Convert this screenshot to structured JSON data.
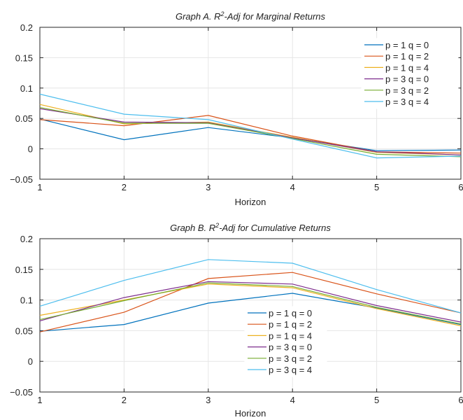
{
  "chart_data": [
    {
      "type": "line",
      "title_main": "Graph A. R",
      "title_sup": "2",
      "title_rest": "-Adj for Marginal Returns",
      "xlabel": "Horizon",
      "ylabel": "",
      "x": [
        1,
        2,
        3,
        4,
        5,
        6
      ],
      "xlim": [
        1,
        6
      ],
      "ylim": [
        -0.05,
        0.2
      ],
      "xticks": [
        1,
        2,
        3,
        4,
        5,
        6
      ],
      "yticks": [
        -0.05,
        0,
        0.05,
        0.1,
        0.15,
        0.2
      ],
      "ytick_labels": [
        "−0.05",
        "0",
        "0.05",
        "0.1",
        "0.15",
        "0.2"
      ],
      "grid": true,
      "legend_position": "top-right",
      "series": [
        {
          "name": "p = 1 q = 0",
          "color": "#0072BD",
          "values": [
            0.049,
            0.015,
            0.035,
            0.018,
            -0.003,
            -0.002
          ]
        },
        {
          "name": "p = 1 q = 2",
          "color": "#D95319",
          "values": [
            0.048,
            0.038,
            0.055,
            0.021,
            -0.005,
            -0.007
          ]
        },
        {
          "name": "p = 1 q = 4",
          "color": "#EDB120",
          "values": [
            0.073,
            0.041,
            0.044,
            0.019,
            -0.006,
            -0.01
          ]
        },
        {
          "name": "p = 3 q = 0",
          "color": "#7E2F8E",
          "values": [
            0.066,
            0.044,
            0.043,
            0.018,
            -0.005,
            -0.01
          ]
        },
        {
          "name": "p = 3 q = 2",
          "color": "#77AC30",
          "values": [
            0.068,
            0.042,
            0.042,
            0.017,
            -0.009,
            -0.013
          ]
        },
        {
          "name": "p = 3 q = 4",
          "color": "#4DBEEE",
          "values": [
            0.09,
            0.057,
            0.048,
            0.016,
            -0.015,
            -0.012
          ]
        }
      ]
    },
    {
      "type": "line",
      "title_main": "Graph B. R",
      "title_sup": "2",
      "title_rest": "-Adj for Cumulative Returns",
      "xlabel": "Horizon",
      "ylabel": "",
      "x": [
        1,
        2,
        3,
        4,
        5,
        6
      ],
      "xlim": [
        1,
        6
      ],
      "ylim": [
        -0.05,
        0.2
      ],
      "xticks": [
        1,
        2,
        3,
        4,
        5,
        6
      ],
      "yticks": [
        -0.05,
        0,
        0.05,
        0.1,
        0.15,
        0.2
      ],
      "ytick_labels": [
        "−0.05",
        "0",
        "0.05",
        "0.1",
        "0.15",
        "0.2"
      ],
      "grid": true,
      "legend_position": "center",
      "series": [
        {
          "name": "p = 1 q = 0",
          "color": "#0072BD",
          "values": [
            0.049,
            0.06,
            0.095,
            0.111,
            0.087,
            0.06
          ]
        },
        {
          "name": "p = 1 q = 2",
          "color": "#D95319",
          "values": [
            0.048,
            0.08,
            0.135,
            0.145,
            0.11,
            0.079
          ]
        },
        {
          "name": "p = 1 q = 4",
          "color": "#EDB120",
          "values": [
            0.075,
            0.1,
            0.126,
            0.12,
            0.086,
            0.058
          ]
        },
        {
          "name": "p = 3 q = 0",
          "color": "#7E2F8E",
          "values": [
            0.066,
            0.104,
            0.13,
            0.126,
            0.091,
            0.064
          ]
        },
        {
          "name": "p = 3 q = 2",
          "color": "#77AC30",
          "values": [
            0.068,
            0.099,
            0.128,
            0.122,
            0.088,
            0.061
          ]
        },
        {
          "name": "p = 3 q = 4",
          "color": "#4DBEEE",
          "values": [
            0.09,
            0.132,
            0.166,
            0.16,
            0.117,
            0.079
          ]
        }
      ]
    }
  ]
}
